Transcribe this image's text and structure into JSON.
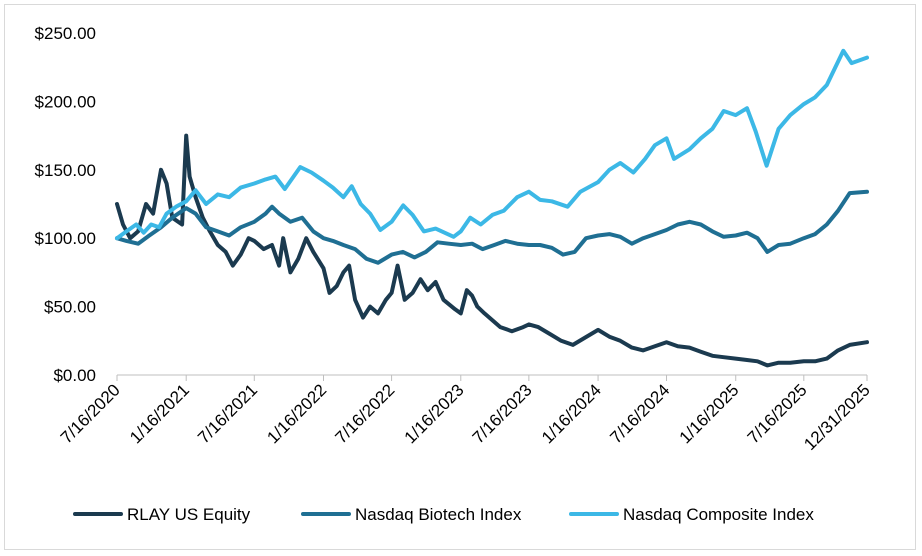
{
  "chart_data": {
    "type": "line",
    "title": "",
    "xlabel": "",
    "ylabel": "",
    "ylim": [
      0,
      250
    ],
    "xlim": [
      "2020-07-16",
      "2025-12-31"
    ],
    "grid": false,
    "legend_position": "bottom",
    "y_ticks": [
      0,
      50,
      100,
      150,
      200,
      250
    ],
    "y_tick_labels": [
      "$0.00",
      "$50.00",
      "$100.00",
      "$150.00",
      "$200.00",
      "$250.00"
    ],
    "x_ticks": [
      "2020-07-16",
      "2021-01-16",
      "2021-07-16",
      "2022-01-16",
      "2022-07-16",
      "2023-01-16",
      "2023-07-16",
      "2024-01-16",
      "2024-07-16",
      "2025-01-16",
      "2025-07-16",
      "2025-12-31"
    ],
    "x_tick_labels": [
      "7/16/2020",
      "1/16/2021",
      "7/16/2021",
      "1/16/2022",
      "7/16/2022",
      "1/16/2023",
      "7/16/2023",
      "1/16/2024",
      "7/16/2024",
      "1/16/2025",
      "7/16/2025",
      "12/31/2025"
    ],
    "series": [
      {
        "name": "RLAY US Equity",
        "color": "#1b3a4f",
        "points": [
          [
            "2020-07-16",
            125
          ],
          [
            "2020-08-01",
            110
          ],
          [
            "2020-08-20",
            100
          ],
          [
            "2020-09-10",
            105
          ],
          [
            "2020-10-01",
            125
          ],
          [
            "2020-10-20",
            118
          ],
          [
            "2020-11-10",
            150
          ],
          [
            "2020-11-25",
            140
          ],
          [
            "2020-12-10",
            115
          ],
          [
            "2021-01-05",
            110
          ],
          [
            "2021-01-16",
            175
          ],
          [
            "2021-01-25",
            145
          ],
          [
            "2021-02-10",
            130
          ],
          [
            "2021-03-01",
            115
          ],
          [
            "2021-03-20",
            105
          ],
          [
            "2021-04-10",
            95
          ],
          [
            "2021-05-01",
            90
          ],
          [
            "2021-05-20",
            80
          ],
          [
            "2021-06-10",
            88
          ],
          [
            "2021-07-01",
            100
          ],
          [
            "2021-07-16",
            98
          ],
          [
            "2021-08-10",
            92
          ],
          [
            "2021-09-01",
            95
          ],
          [
            "2021-09-20",
            80
          ],
          [
            "2021-10-01",
            100
          ],
          [
            "2021-10-20",
            75
          ],
          [
            "2021-11-10",
            85
          ],
          [
            "2021-12-01",
            100
          ],
          [
            "2021-12-20",
            90
          ],
          [
            "2022-01-16",
            78
          ],
          [
            "2022-02-01",
            60
          ],
          [
            "2022-02-20",
            65
          ],
          [
            "2022-03-10",
            75
          ],
          [
            "2022-03-25",
            80
          ],
          [
            "2022-04-10",
            55
          ],
          [
            "2022-05-01",
            42
          ],
          [
            "2022-05-20",
            50
          ],
          [
            "2022-06-10",
            45
          ],
          [
            "2022-07-01",
            55
          ],
          [
            "2022-07-16",
            60
          ],
          [
            "2022-08-01",
            80
          ],
          [
            "2022-08-20",
            55
          ],
          [
            "2022-09-10",
            60
          ],
          [
            "2022-10-01",
            70
          ],
          [
            "2022-10-20",
            62
          ],
          [
            "2022-11-10",
            68
          ],
          [
            "2022-12-01",
            55
          ],
          [
            "2023-01-01",
            48
          ],
          [
            "2023-01-16",
            45
          ],
          [
            "2023-02-01",
            62
          ],
          [
            "2023-02-15",
            58
          ],
          [
            "2023-03-01",
            50
          ],
          [
            "2023-03-20",
            45
          ],
          [
            "2023-04-10",
            40
          ],
          [
            "2023-05-01",
            35
          ],
          [
            "2023-06-01",
            32
          ],
          [
            "2023-07-01",
            35
          ],
          [
            "2023-07-16",
            37
          ],
          [
            "2023-08-10",
            35
          ],
          [
            "2023-09-10",
            30
          ],
          [
            "2023-10-10",
            25
          ],
          [
            "2023-11-10",
            22
          ],
          [
            "2023-12-10",
            27
          ],
          [
            "2024-01-16",
            33
          ],
          [
            "2024-02-15",
            28
          ],
          [
            "2024-03-15",
            25
          ],
          [
            "2024-04-15",
            20
          ],
          [
            "2024-05-15",
            18
          ],
          [
            "2024-06-15",
            21
          ],
          [
            "2024-07-16",
            24
          ],
          [
            "2024-08-15",
            21
          ],
          [
            "2024-09-15",
            20
          ],
          [
            "2024-10-15",
            17
          ],
          [
            "2024-11-15",
            14
          ],
          [
            "2024-12-15",
            13
          ],
          [
            "2025-01-16",
            12
          ],
          [
            "2025-02-15",
            11
          ],
          [
            "2025-03-15",
            10
          ],
          [
            "2025-04-10",
            7
          ],
          [
            "2025-05-10",
            9
          ],
          [
            "2025-06-10",
            9
          ],
          [
            "2025-07-16",
            10
          ],
          [
            "2025-08-15",
            10
          ],
          [
            "2025-09-15",
            12
          ],
          [
            "2025-10-15",
            18
          ],
          [
            "2025-11-15",
            22
          ],
          [
            "2025-12-31",
            24
          ]
        ]
      },
      {
        "name": "Nasdaq Biotech Index",
        "color": "#1f6f93",
        "points": [
          [
            "2020-07-16",
            100
          ],
          [
            "2020-08-10",
            98
          ],
          [
            "2020-09-10",
            96
          ],
          [
            "2020-10-10",
            102
          ],
          [
            "2020-11-10",
            108
          ],
          [
            "2020-12-10",
            115
          ],
          [
            "2021-01-16",
            122
          ],
          [
            "2021-02-10",
            118
          ],
          [
            "2021-03-10",
            108
          ],
          [
            "2021-04-10",
            105
          ],
          [
            "2021-05-10",
            102
          ],
          [
            "2021-06-10",
            108
          ],
          [
            "2021-07-16",
            112
          ],
          [
            "2021-08-15",
            118
          ],
          [
            "2021-09-01",
            123
          ],
          [
            "2021-09-20",
            118
          ],
          [
            "2021-10-20",
            112
          ],
          [
            "2021-11-20",
            115
          ],
          [
            "2021-12-20",
            105
          ],
          [
            "2022-01-16",
            100
          ],
          [
            "2022-02-10",
            98
          ],
          [
            "2022-03-10",
            95
          ],
          [
            "2022-04-10",
            92
          ],
          [
            "2022-05-10",
            85
          ],
          [
            "2022-06-10",
            82
          ],
          [
            "2022-07-16",
            88
          ],
          [
            "2022-08-15",
            90
          ],
          [
            "2022-09-15",
            86
          ],
          [
            "2022-10-15",
            90
          ],
          [
            "2022-11-15",
            97
          ],
          [
            "2022-12-15",
            96
          ],
          [
            "2023-01-16",
            95
          ],
          [
            "2023-02-15",
            96
          ],
          [
            "2023-03-15",
            92
          ],
          [
            "2023-04-15",
            95
          ],
          [
            "2023-05-15",
            98
          ],
          [
            "2023-06-15",
            96
          ],
          [
            "2023-07-16",
            95
          ],
          [
            "2023-08-15",
            95
          ],
          [
            "2023-09-15",
            93
          ],
          [
            "2023-10-15",
            88
          ],
          [
            "2023-11-15",
            90
          ],
          [
            "2023-12-15",
            100
          ],
          [
            "2024-01-16",
            102
          ],
          [
            "2024-02-15",
            103
          ],
          [
            "2024-03-15",
            101
          ],
          [
            "2024-04-15",
            96
          ],
          [
            "2024-05-15",
            100
          ],
          [
            "2024-06-15",
            103
          ],
          [
            "2024-07-16",
            106
          ],
          [
            "2024-08-15",
            110
          ],
          [
            "2024-09-15",
            112
          ],
          [
            "2024-10-15",
            110
          ],
          [
            "2024-11-15",
            105
          ],
          [
            "2024-12-15",
            101
          ],
          [
            "2025-01-16",
            102
          ],
          [
            "2025-02-15",
            104
          ],
          [
            "2025-03-15",
            100
          ],
          [
            "2025-04-10",
            90
          ],
          [
            "2025-05-10",
            95
          ],
          [
            "2025-06-10",
            96
          ],
          [
            "2025-07-16",
            100
          ],
          [
            "2025-08-15",
            103
          ],
          [
            "2025-09-15",
            110
          ],
          [
            "2025-10-15",
            120
          ],
          [
            "2025-11-15",
            133
          ],
          [
            "2025-12-31",
            134
          ]
        ]
      },
      {
        "name": "Nasdaq Composite Index",
        "color": "#3cb8e6",
        "points": [
          [
            "2020-07-16",
            100
          ],
          [
            "2020-08-10",
            105
          ],
          [
            "2020-09-05",
            110
          ],
          [
            "2020-09-25",
            104
          ],
          [
            "2020-10-15",
            110
          ],
          [
            "2020-11-05",
            108
          ],
          [
            "2020-11-25",
            118
          ],
          [
            "2020-12-20",
            123
          ],
          [
            "2021-01-16",
            127
          ],
          [
            "2021-02-10",
            135
          ],
          [
            "2021-03-10",
            125
          ],
          [
            "2021-04-10",
            132
          ],
          [
            "2021-05-10",
            130
          ],
          [
            "2021-06-10",
            137
          ],
          [
            "2021-07-16",
            140
          ],
          [
            "2021-08-15",
            143
          ],
          [
            "2021-09-10",
            145
          ],
          [
            "2021-10-05",
            136
          ],
          [
            "2021-11-15",
            152
          ],
          [
            "2021-12-15",
            148
          ],
          [
            "2022-01-16",
            142
          ],
          [
            "2022-02-10",
            137
          ],
          [
            "2022-03-10",
            130
          ],
          [
            "2022-04-01",
            138
          ],
          [
            "2022-04-25",
            125
          ],
          [
            "2022-05-20",
            118
          ],
          [
            "2022-06-16",
            106
          ],
          [
            "2022-07-16",
            112
          ],
          [
            "2022-08-16",
            124
          ],
          [
            "2022-09-10",
            117
          ],
          [
            "2022-10-10",
            105
          ],
          [
            "2022-11-10",
            107
          ],
          [
            "2022-12-28",
            101
          ],
          [
            "2023-01-16",
            105
          ],
          [
            "2023-02-10",
            115
          ],
          [
            "2023-03-10",
            110
          ],
          [
            "2023-04-10",
            117
          ],
          [
            "2023-05-10",
            120
          ],
          [
            "2023-06-15",
            130
          ],
          [
            "2023-07-16",
            134
          ],
          [
            "2023-08-15",
            128
          ],
          [
            "2023-09-15",
            127
          ],
          [
            "2023-10-27",
            123
          ],
          [
            "2023-11-30",
            134
          ],
          [
            "2024-01-16",
            141
          ],
          [
            "2024-02-15",
            150
          ],
          [
            "2024-03-15",
            155
          ],
          [
            "2024-04-19",
            148
          ],
          [
            "2024-05-20",
            158
          ],
          [
            "2024-06-15",
            168
          ],
          [
            "2024-07-16",
            173
          ],
          [
            "2024-08-05",
            158
          ],
          [
            "2024-09-15",
            165
          ],
          [
            "2024-10-15",
            173
          ],
          [
            "2024-11-15",
            180
          ],
          [
            "2024-12-15",
            193
          ],
          [
            "2025-01-16",
            190
          ],
          [
            "2025-02-15",
            195
          ],
          [
            "2025-03-10",
            178
          ],
          [
            "2025-04-08",
            153
          ],
          [
            "2025-05-10",
            180
          ],
          [
            "2025-06-10",
            190
          ],
          [
            "2025-07-16",
            198
          ],
          [
            "2025-08-15",
            203
          ],
          [
            "2025-09-15",
            212
          ],
          [
            "2025-10-29",
            237
          ],
          [
            "2025-11-20",
            228
          ],
          [
            "2025-12-31",
            232
          ]
        ]
      }
    ]
  }
}
